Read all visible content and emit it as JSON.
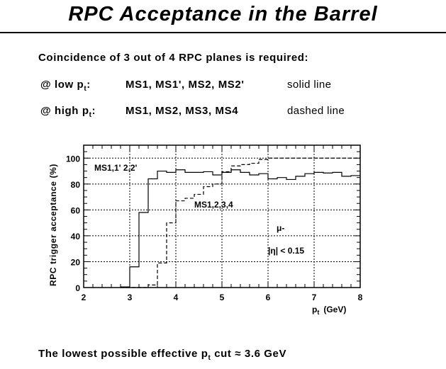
{
  "title": "RPC Acceptance in the Barrel",
  "intro": "Coincidence of 3 out of 4 RPC planes is required:",
  "rows": [
    {
      "label": "@ low p",
      "sub": "t",
      "colon": ":",
      "planes": "MS1, MS1', MS2, MS2'",
      "style": "solid line"
    },
    {
      "label": "@ high p",
      "sub": "t",
      "colon": ":",
      "planes": "MS1, MS2, MS3, MS4",
      "style": "dashed line"
    }
  ],
  "footer": {
    "text": "The lowest possible effective p",
    "sub": "t",
    "rest": " cut ≈ 3.6 GeV"
  },
  "chart_data": {
    "type": "line",
    "xlabel": "p_t (GeV)",
    "xlabel_main": "p",
    "xlabel_sub": "t",
    "xlabel_unit": "(GeV)",
    "ylabel": "RPC trigger acceptance (%)",
    "xlim": [
      2,
      8
    ],
    "ylim": [
      0,
      110
    ],
    "xticks": [
      "2",
      "3",
      "4",
      "5",
      "6",
      "7",
      "8"
    ],
    "yticks": [
      "0",
      "20",
      "40",
      "60",
      "80",
      "100"
    ],
    "grid": true,
    "bin_edges": [
      2.8,
      3.0,
      3.2,
      3.4,
      3.6,
      3.8,
      4.0,
      4.2,
      4.4,
      4.6,
      4.8,
      5.0,
      5.2,
      5.4,
      5.6,
      5.8,
      6.0,
      6.2,
      6.4,
      6.6,
      6.8,
      7.0,
      7.2,
      7.4,
      7.6,
      7.8,
      8.0
    ],
    "series": [
      {
        "name": "MS1,1',2,2'",
        "style": "solid",
        "values": [
          0.5,
          16,
          58,
          84,
          90,
          89,
          91,
          89,
          89,
          89.5,
          87,
          89,
          91,
          89,
          87,
          88,
          84,
          85,
          83.5,
          86,
          88,
          89,
          88.5,
          89,
          86,
          86.5
        ]
      },
      {
        "name": "MS1,2,3,4",
        "style": "dashed",
        "values": [
          0,
          0,
          0,
          2,
          19,
          50,
          67,
          69,
          72,
          78,
          80,
          89.5,
          94,
          95,
          96,
          99,
          100,
          100,
          100,
          100,
          100,
          100,
          100,
          100,
          100,
          100
        ]
      }
    ],
    "annotations": [
      "MS1,1' 2,2'",
      "MS1,2,3,4",
      "μ-",
      "|η| < 0.15"
    ]
  }
}
